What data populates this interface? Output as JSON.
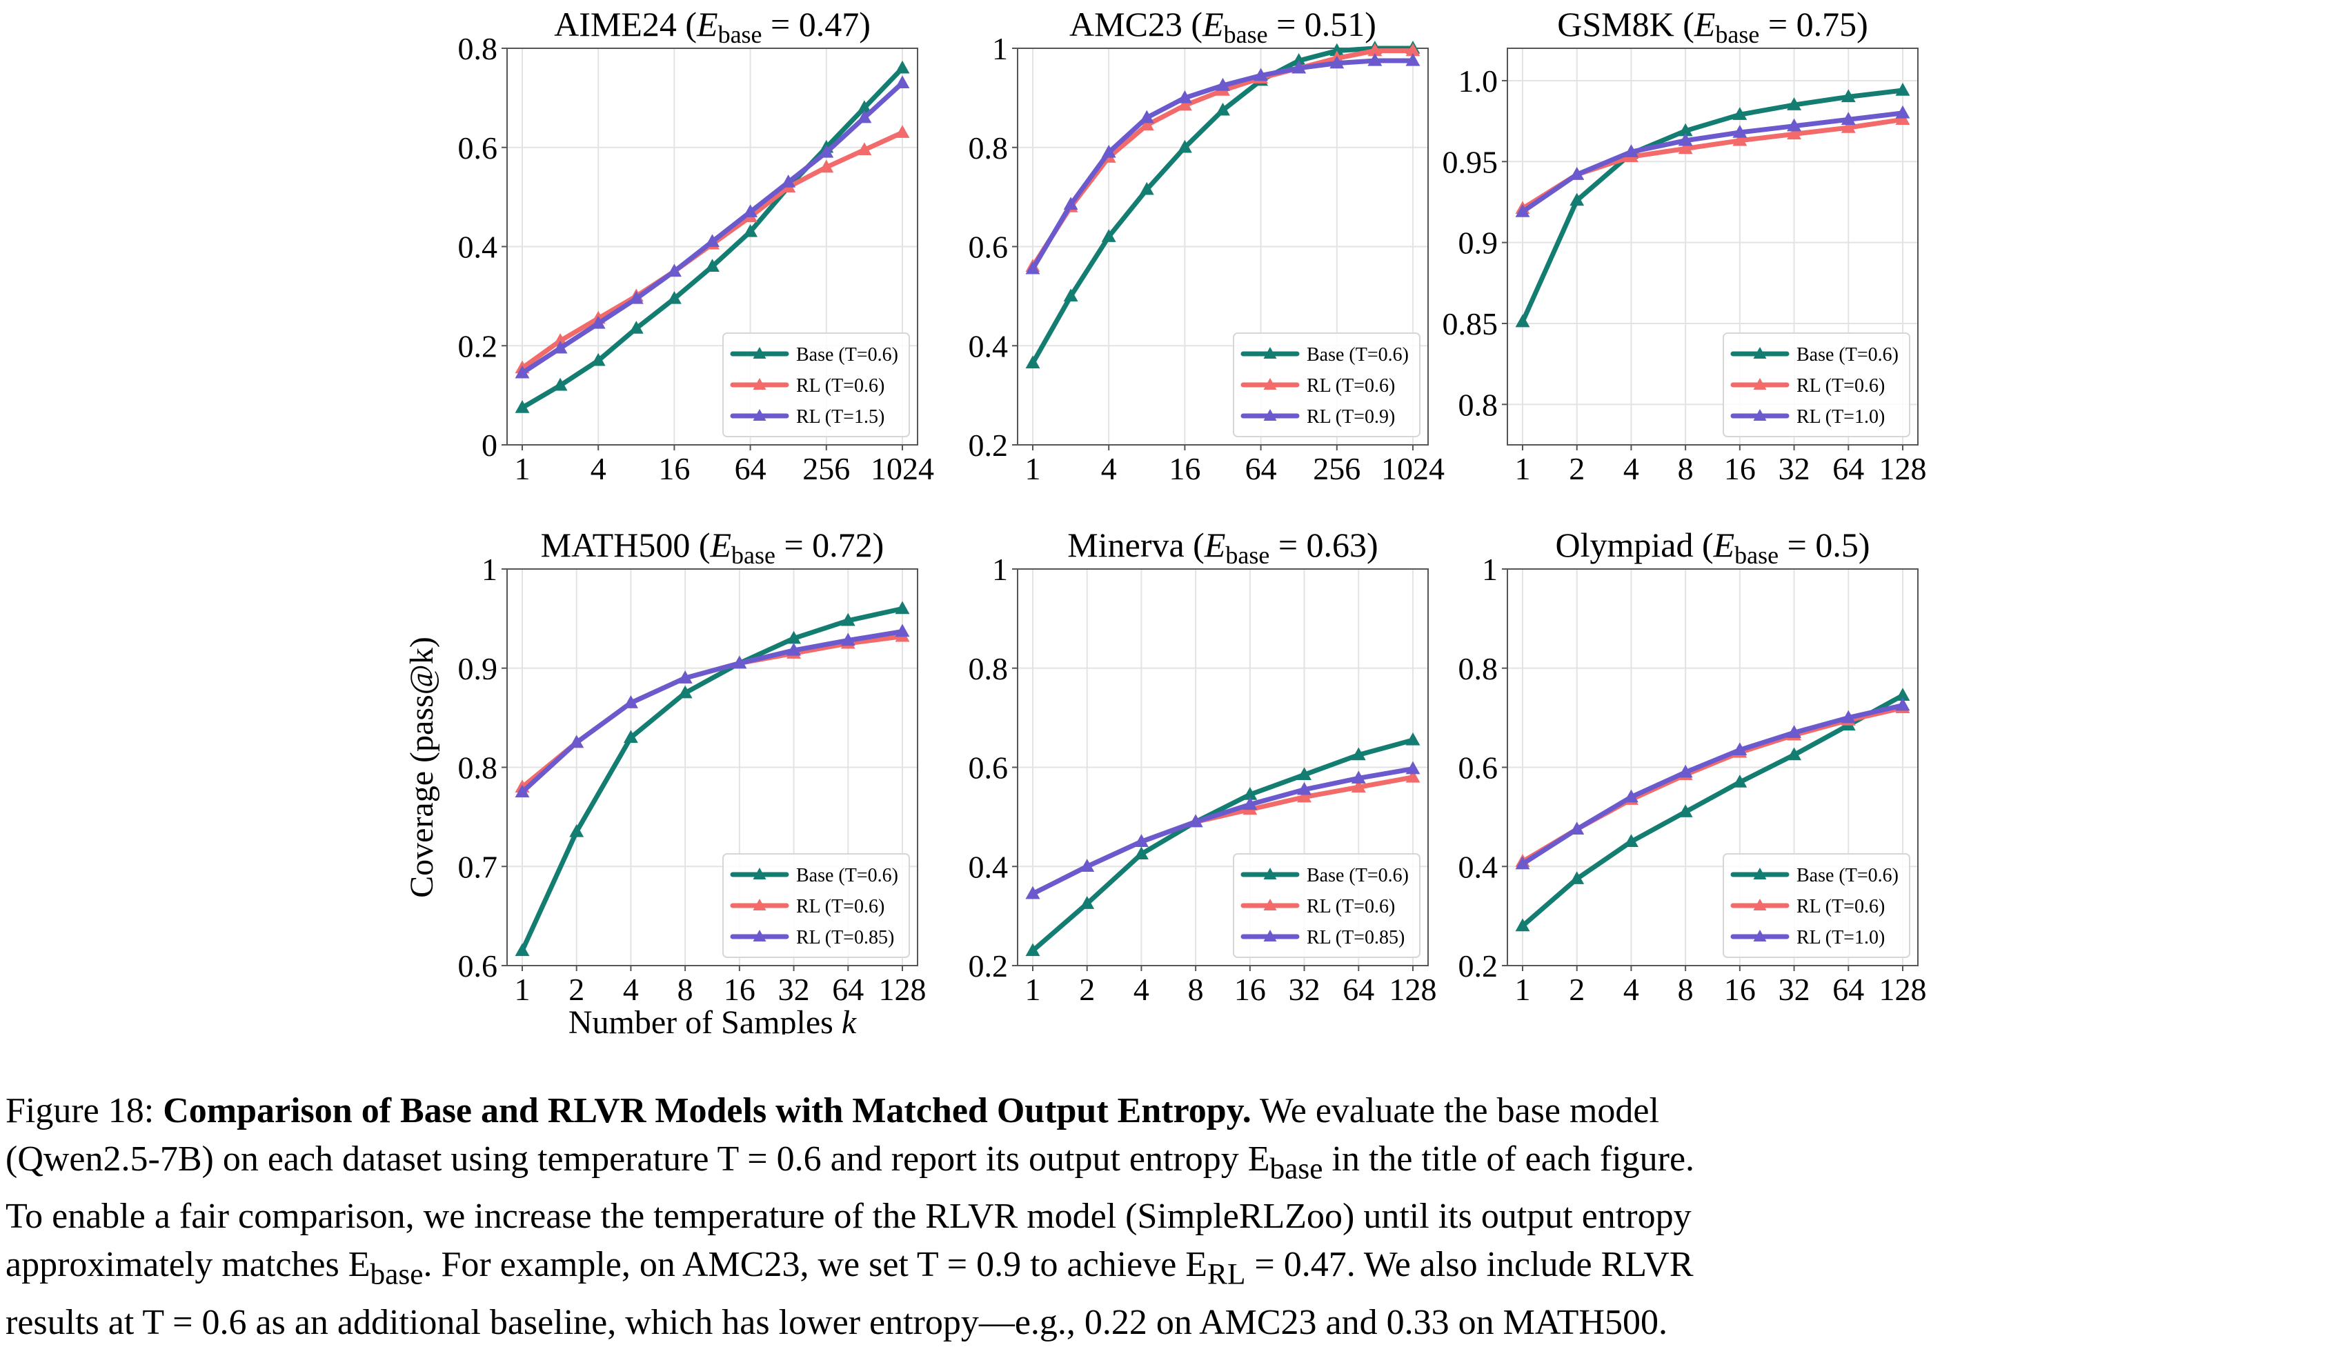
{
  "chart_data": [
    {
      "type": "line",
      "title_prefix": "AIME24 (",
      "title_suffix": " = 0.47)",
      "title_symbol": "E",
      "title_subscript": "base",
      "xscale": "log2",
      "x_ticks": [
        1,
        4,
        16,
        64,
        256,
        1024
      ],
      "x_tick_labels": [
        "1",
        "4",
        "16",
        "64",
        "256",
        "1024"
      ],
      "ylim": [
        0,
        0.8
      ],
      "y_ticks": [
        0,
        0.2,
        0.4,
        0.6,
        0.8
      ],
      "y_tick_labels": [
        "0",
        "0.2",
        "0.4",
        "0.6",
        "0.8"
      ],
      "legend_position": "lower-right",
      "series": [
        {
          "name": "Base (T=0.6)",
          "color": "#147d72",
          "x": [
            1,
            2,
            4,
            8,
            16,
            32,
            64,
            128,
            256,
            512,
            1024
          ],
          "y": [
            0.075,
            0.12,
            0.17,
            0.235,
            0.295,
            0.36,
            0.43,
            0.52,
            0.6,
            0.68,
            0.76
          ]
        },
        {
          "name": "RL (T=0.6)",
          "color": "#f26a6a",
          "x": [
            1,
            2,
            4,
            8,
            16,
            32,
            64,
            128,
            256,
            512,
            1024
          ],
          "y": [
            0.155,
            0.21,
            0.255,
            0.3,
            0.35,
            0.405,
            0.46,
            0.52,
            0.56,
            0.595,
            0.63
          ]
        },
        {
          "name": "RL (T=1.5)",
          "color": "#6a5acd",
          "x": [
            1,
            2,
            4,
            8,
            16,
            32,
            64,
            128,
            256,
            512,
            1024
          ],
          "y": [
            0.145,
            0.195,
            0.245,
            0.295,
            0.35,
            0.41,
            0.47,
            0.53,
            0.59,
            0.66,
            0.73
          ]
        }
      ]
    },
    {
      "type": "line",
      "title_prefix": "AMC23 (",
      "title_suffix": " = 0.51)",
      "title_symbol": "E",
      "title_subscript": "base",
      "xscale": "log2",
      "x_ticks": [
        1,
        4,
        16,
        64,
        256,
        1024
      ],
      "x_tick_labels": [
        "1",
        "4",
        "16",
        "64",
        "256",
        "1024"
      ],
      "ylim": [
        0.2,
        1.0
      ],
      "y_ticks": [
        0.2,
        0.4,
        0.6,
        0.8,
        1.0
      ],
      "y_tick_labels": [
        "0.2",
        "0.4",
        "0.6",
        "0.8",
        "1"
      ],
      "legend_position": "lower-right",
      "series": [
        {
          "name": "Base (T=0.6)",
          "color": "#147d72",
          "x": [
            1,
            2,
            4,
            8,
            16,
            32,
            64,
            128,
            256,
            512,
            1024
          ],
          "y": [
            0.365,
            0.5,
            0.62,
            0.715,
            0.8,
            0.875,
            0.935,
            0.975,
            0.995,
            1.0,
            1.0
          ]
        },
        {
          "name": "RL (T=0.6)",
          "color": "#f26a6a",
          "x": [
            1,
            2,
            4,
            8,
            16,
            32,
            64,
            128,
            256,
            512,
            1024
          ],
          "y": [
            0.56,
            0.68,
            0.78,
            0.845,
            0.885,
            0.915,
            0.94,
            0.96,
            0.98,
            0.995,
            0.995
          ]
        },
        {
          "name": "RL (T=0.9)",
          "color": "#6a5acd",
          "x": [
            1,
            2,
            4,
            8,
            16,
            32,
            64,
            128,
            256,
            512,
            1024
          ],
          "y": [
            0.555,
            0.685,
            0.79,
            0.86,
            0.9,
            0.925,
            0.945,
            0.96,
            0.97,
            0.975,
            0.975
          ]
        }
      ]
    },
    {
      "type": "line",
      "title_prefix": "GSM8K (",
      "title_suffix": " = 0.75)",
      "title_symbol": "E",
      "title_subscript": "base",
      "xscale": "log2",
      "x_ticks": [
        1,
        2,
        4,
        8,
        16,
        32,
        64,
        128
      ],
      "x_tick_labels": [
        "1",
        "2",
        "4",
        "8",
        "16",
        "32",
        "64",
        "128"
      ],
      "ylim": [
        0.775,
        1.02
      ],
      "y_ticks": [
        0.8,
        0.85,
        0.9,
        0.95,
        1.0
      ],
      "y_tick_labels": [
        "0.8",
        "0.85",
        "0.9",
        "0.95",
        "1.0"
      ],
      "legend_position": "lower-right",
      "series": [
        {
          "name": "Base (T=0.6)",
          "color": "#147d72",
          "x": [
            1,
            2,
            4,
            8,
            16,
            32,
            64,
            128
          ],
          "y": [
            0.851,
            0.926,
            0.955,
            0.969,
            0.979,
            0.985,
            0.99,
            0.994
          ]
        },
        {
          "name": "RL (T=0.6)",
          "color": "#f26a6a",
          "x": [
            1,
            2,
            4,
            8,
            16,
            32,
            64,
            128
          ],
          "y": [
            0.921,
            0.942,
            0.953,
            0.958,
            0.963,
            0.967,
            0.971,
            0.976
          ]
        },
        {
          "name": "RL (T=1.0)",
          "color": "#6a5acd",
          "x": [
            1,
            2,
            4,
            8,
            16,
            32,
            64,
            128
          ],
          "y": [
            0.919,
            0.942,
            0.956,
            0.963,
            0.968,
            0.972,
            0.976,
            0.98
          ]
        }
      ]
    },
    {
      "type": "line",
      "title_prefix": "MATH500 (",
      "title_suffix": " = 0.72)",
      "title_symbol": "E",
      "title_subscript": "base",
      "xscale": "log2",
      "x_ticks": [
        1,
        2,
        4,
        8,
        16,
        32,
        64,
        128
      ],
      "x_tick_labels": [
        "1",
        "2",
        "4",
        "8",
        "16",
        "32",
        "64",
        "128"
      ],
      "ylim": [
        0.6,
        1.0
      ],
      "y_ticks": [
        0.6,
        0.7,
        0.8,
        0.9,
        1.0
      ],
      "y_tick_labels": [
        "0.6",
        "0.7",
        "0.8",
        "0.9",
        "1"
      ],
      "ylabel": "Coverage (pass@k)",
      "xlabel_prefix": "Number of Samples ",
      "xlabel_symbol": "k",
      "legend_position": "lower-right",
      "series": [
        {
          "name": "Base (T=0.6)",
          "color": "#147d72",
          "x": [
            1,
            2,
            4,
            8,
            16,
            32,
            64,
            128
          ],
          "y": [
            0.615,
            0.735,
            0.83,
            0.875,
            0.905,
            0.93,
            0.948,
            0.96
          ]
        },
        {
          "name": "RL (T=0.6)",
          "color": "#f26a6a",
          "x": [
            1,
            2,
            4,
            8,
            16,
            32,
            64,
            128
          ],
          "y": [
            0.78,
            0.825,
            0.865,
            0.89,
            0.905,
            0.915,
            0.925,
            0.932
          ]
        },
        {
          "name": "RL (T=0.85)",
          "color": "#6a5acd",
          "x": [
            1,
            2,
            4,
            8,
            16,
            32,
            64,
            128
          ],
          "y": [
            0.775,
            0.825,
            0.865,
            0.89,
            0.905,
            0.918,
            0.928,
            0.937
          ]
        }
      ]
    },
    {
      "type": "line",
      "title_prefix": "Minerva (",
      "title_suffix": " = 0.63)",
      "title_symbol": "E",
      "title_subscript": "base",
      "xscale": "log2",
      "x_ticks": [
        1,
        2,
        4,
        8,
        16,
        32,
        64,
        128
      ],
      "x_tick_labels": [
        "1",
        "2",
        "4",
        "8",
        "16",
        "32",
        "64",
        "128"
      ],
      "ylim": [
        0.2,
        1.0
      ],
      "y_ticks": [
        0.2,
        0.4,
        0.6,
        0.8,
        1.0
      ],
      "y_tick_labels": [
        "0.2",
        "0.4",
        "0.6",
        "0.8",
        "1"
      ],
      "legend_position": "lower-right",
      "series": [
        {
          "name": "Base (T=0.6)",
          "color": "#147d72",
          "x": [
            1,
            2,
            4,
            8,
            16,
            32,
            64,
            128
          ],
          "y": [
            0.23,
            0.325,
            0.425,
            0.49,
            0.545,
            0.585,
            0.625,
            0.655
          ]
        },
        {
          "name": "RL (T=0.6)",
          "color": "#f26a6a",
          "x": [
            1,
            2,
            4,
            8,
            16,
            32,
            64,
            128
          ],
          "y": [
            0.345,
            0.4,
            0.45,
            0.49,
            0.515,
            0.54,
            0.56,
            0.58
          ]
        },
        {
          "name": "RL (T=0.85)",
          "color": "#6a5acd",
          "x": [
            1,
            2,
            4,
            8,
            16,
            32,
            64,
            128
          ],
          "y": [
            0.345,
            0.4,
            0.45,
            0.49,
            0.525,
            0.555,
            0.578,
            0.597
          ]
        }
      ]
    },
    {
      "type": "line",
      "title_prefix": "Olympiad (",
      "title_suffix": " = 0.5)",
      "title_symbol": "E",
      "title_subscript": "base",
      "xscale": "log2",
      "x_ticks": [
        1,
        2,
        4,
        8,
        16,
        32,
        64,
        128
      ],
      "x_tick_labels": [
        "1",
        "2",
        "4",
        "8",
        "16",
        "32",
        "64",
        "128"
      ],
      "ylim": [
        0.2,
        1.0
      ],
      "y_ticks": [
        0.2,
        0.4,
        0.6,
        0.8,
        1.0
      ],
      "y_tick_labels": [
        "0.2",
        "0.4",
        "0.6",
        "0.8",
        "1"
      ],
      "legend_position": "lower-right",
      "series": [
        {
          "name": "Base (T=0.6)",
          "color": "#147d72",
          "x": [
            1,
            2,
            4,
            8,
            16,
            32,
            64,
            128
          ],
          "y": [
            0.28,
            0.375,
            0.45,
            0.51,
            0.57,
            0.625,
            0.685,
            0.745
          ]
        },
        {
          "name": "RL (T=0.6)",
          "color": "#f26a6a",
          "x": [
            1,
            2,
            4,
            8,
            16,
            32,
            64,
            128
          ],
          "y": [
            0.41,
            0.475,
            0.535,
            0.585,
            0.63,
            0.665,
            0.695,
            0.72
          ]
        },
        {
          "name": "RL (T=1.0)",
          "color": "#6a5acd",
          "x": [
            1,
            2,
            4,
            8,
            16,
            32,
            64,
            128
          ],
          "y": [
            0.405,
            0.475,
            0.54,
            0.59,
            0.635,
            0.67,
            0.7,
            0.725
          ]
        }
      ]
    }
  ],
  "caption": {
    "number": "Figure 18: ",
    "bold": "Comparison of Base and RLVR Models with Matched Output Entropy.",
    "line1_rest": " We evaluate the base model",
    "line2": "(Qwen2.5-7B) on each dataset using temperature T = 0.6 and report its output entropy E",
    "line2_sub": "base",
    "line2_end": " in the title of each figure.",
    "line3": "To enable a fair comparison, we increase the temperature of the RLVR model (SimpleRLZoo) until its output entropy",
    "line4_a": "approximately matches E",
    "line4_sub1": "base",
    "line4_b": ". For example, on AMC23, we set T = 0.9 to achieve E",
    "line4_sub2": "RL",
    "line4_c": " = 0.47. We also include RLVR",
    "line5": "results at T = 0.6 as an additional baseline, which has lower entropy—e.g., 0.22 on AMC23 and 0.33 on MATH500."
  }
}
